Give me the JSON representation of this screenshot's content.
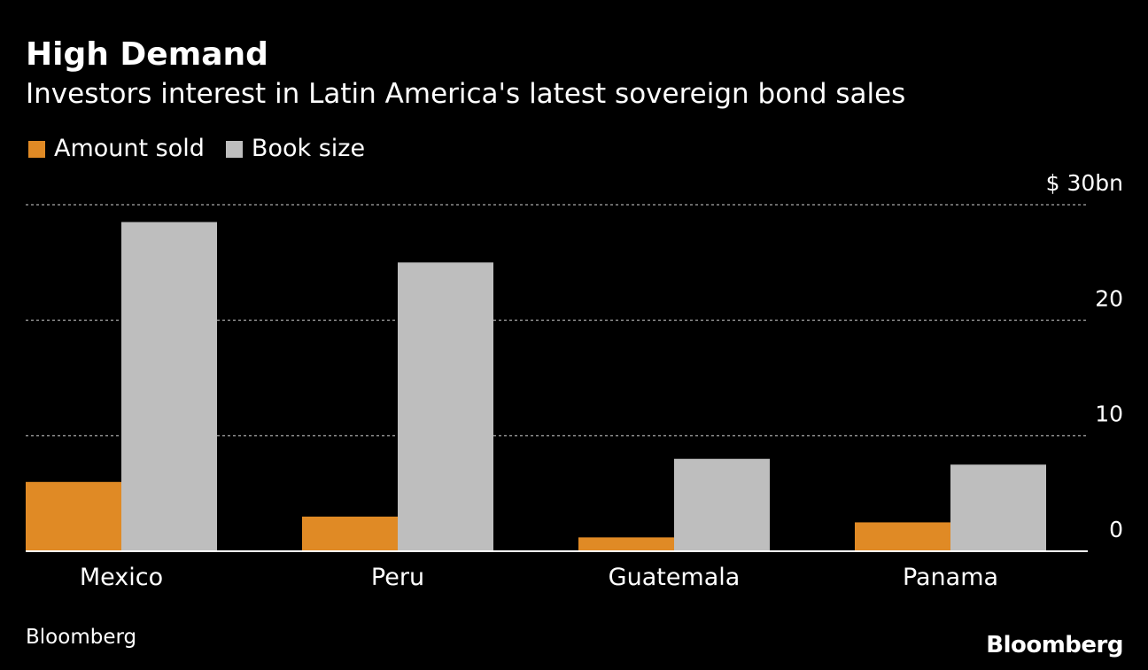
{
  "header": {
    "title": "High Demand",
    "subtitle": "Investors interest in Latin America's latest sovereign bond sales"
  },
  "footer": {
    "source": "Bloomberg",
    "logo": "Bloomberg"
  },
  "colors": {
    "background": "#000000",
    "amount_sold": "#e08a25",
    "book_size": "#bebebe",
    "grid": "#8c8c8c",
    "text": "#ffffff"
  },
  "chart_data": {
    "type": "bar",
    "categories": [
      "Mexico",
      "Peru",
      "Guatemala",
      "Panama"
    ],
    "series": [
      {
        "name": "Amount sold",
        "values": [
          6.0,
          3.0,
          1.2,
          2.5
        ]
      },
      {
        "name": "Book size",
        "values": [
          28.5,
          25.0,
          8.0,
          7.5
        ]
      }
    ],
    "ylim": [
      0,
      30
    ],
    "yticks": [
      {
        "value": 30,
        "label": "$ 30bn"
      },
      {
        "value": 20,
        "label": "20"
      },
      {
        "value": 10,
        "label": "10"
      },
      {
        "value": 0,
        "label": "0"
      }
    ],
    "ylabel": "",
    "xlabel": "",
    "grid": true,
    "legend_position": "top-left"
  }
}
